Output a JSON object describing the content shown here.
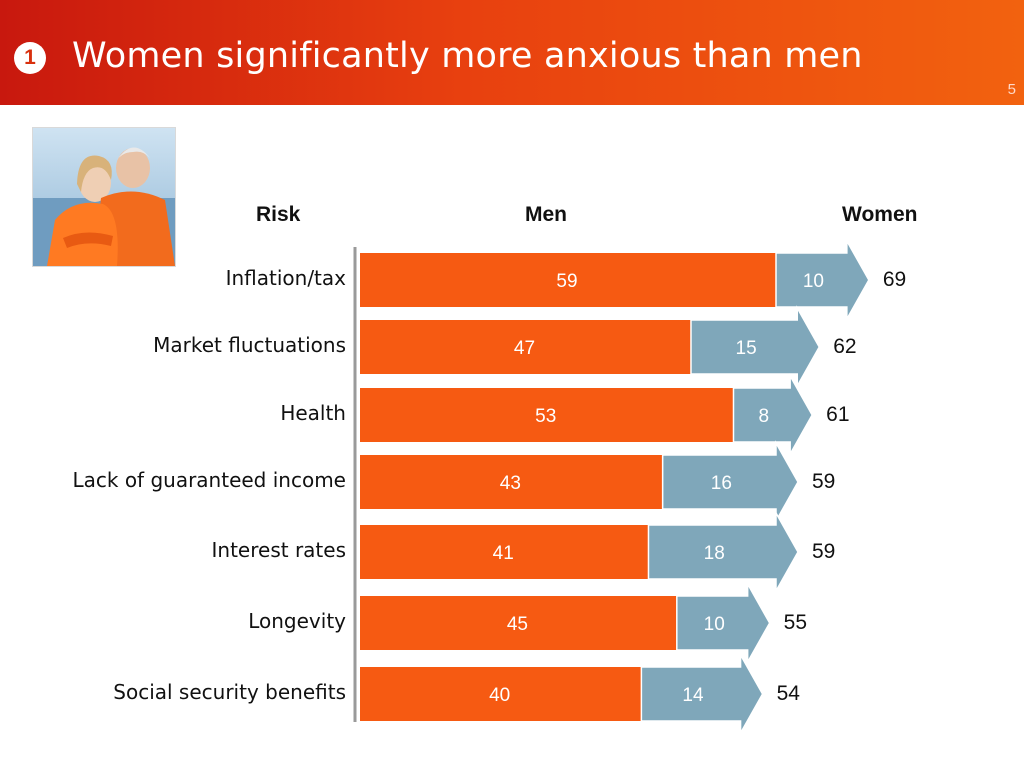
{
  "header": {
    "bullet": "1",
    "title": "Women significantly more anxious than men",
    "page_number": "5"
  },
  "photo": {
    "icon": "couple-photo"
  },
  "columns": {
    "risk": "Risk",
    "men": "Men",
    "women": "Women"
  },
  "colors": {
    "men": "#f65a12",
    "women_gap": "#7fa7ba",
    "header": "#e8400f"
  },
  "chart_data": {
    "type": "bar",
    "orientation": "horizontal-stacked",
    "categories": [
      "Inflation/tax",
      "Market fluctuations",
      "Health",
      "Lack of guaranteed income",
      "Interest rates",
      "Longevity",
      "Social security benefits"
    ],
    "series": [
      {
        "name": "Men",
        "values": [
          59,
          47,
          53,
          43,
          41,
          45,
          40
        ]
      },
      {
        "values": [
          10,
          15,
          8,
          16,
          18,
          10,
          14
        ]
      }
    ],
    "women_totals": [
      69,
      62,
      61,
      59,
      59,
      55,
      54
    ],
    "xlim": [
      0,
      69
    ]
  }
}
